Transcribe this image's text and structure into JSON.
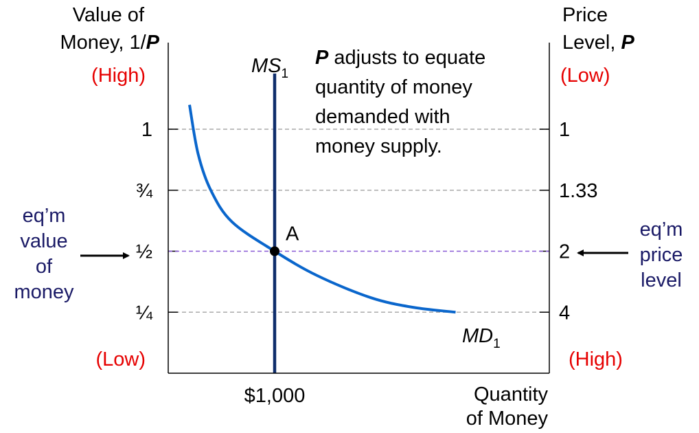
{
  "colors": {
    "axis": "#000000",
    "grid": "#aaaaaa",
    "eq_line": "#8a5cd6",
    "md_curve": "#0a66cc",
    "ms_line": "#0f2d6b",
    "red_label": "#e60000",
    "callout": "#1a1a66"
  },
  "left_axis": {
    "title_line1": "Value of",
    "title_line2_prefix": "Money, 1/",
    "title_line2_var": "P",
    "high": "(High)",
    "low": "(Low)"
  },
  "right_axis": {
    "title_line1": "Price",
    "title_line2_prefix": "Level, ",
    "title_line2_var": "P",
    "low": "(Low)",
    "high": "(High)"
  },
  "x_axis": {
    "tick_label": "$1,000",
    "title_line1": "Quantity",
    "title_line2": "of Money"
  },
  "annotation": {
    "line1_var": "P",
    "line1_rest": " adjusts to equate",
    "line2": "quantity of money",
    "line3": "demanded with",
    "line4": "money supply."
  },
  "callouts": {
    "left": [
      "eq’m",
      "value",
      "of",
      "money"
    ],
    "right": [
      "eq’m",
      "price",
      "level"
    ]
  },
  "chart_data": {
    "type": "line",
    "y_left_ticks": [
      {
        "value": 1,
        "label": "1"
      },
      {
        "value": 0.75,
        "label": "¾"
      },
      {
        "value": 0.5,
        "label": "½"
      },
      {
        "value": 0.25,
        "label": "¼"
      }
    ],
    "y_right_labels": [
      "1",
      "1.33",
      "2",
      "4"
    ],
    "ylim": [
      0,
      1.2
    ],
    "x_ticks": [
      {
        "value": 1000,
        "label": "$1,000"
      }
    ],
    "xlim": [
      0,
      2600
    ],
    "series": [
      {
        "name": "MD",
        "subscript": "1",
        "kind": "demand_curve",
        "points": [
          [
            200,
            1.1
          ],
          [
            280,
            0.9
          ],
          [
            400,
            0.75
          ],
          [
            600,
            0.62
          ],
          [
            1000,
            0.5
          ],
          [
            1400,
            0.4
          ],
          [
            1900,
            0.31
          ],
          [
            2300,
            0.27
          ],
          [
            2700,
            0.25
          ]
        ]
      },
      {
        "name": "MS",
        "subscript": "1",
        "kind": "vertical_supply",
        "x": 1000
      }
    ],
    "equilibrium": {
      "label": "A",
      "x": 1000,
      "y": 0.5,
      "price_level": 2
    },
    "grid": true
  }
}
